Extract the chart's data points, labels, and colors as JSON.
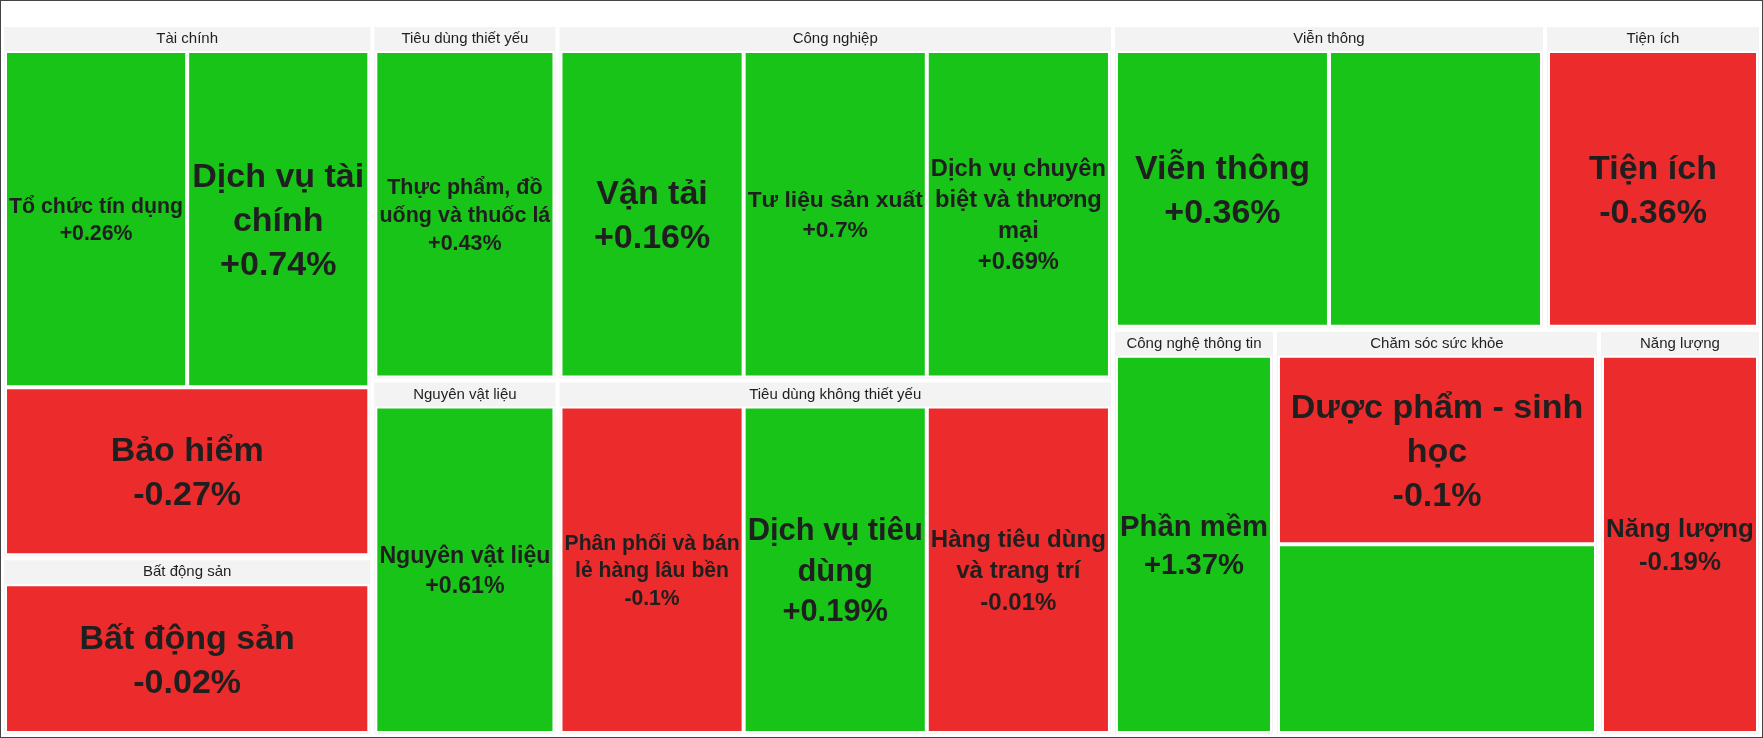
{
  "chart_data": {
    "type": "other",
    "categories": [
      "Tổ chức tín dụng",
      "Dịch vụ tài chính",
      "Bảo hiểm",
      "Bất động sản",
      "Thực phẩm, đồ uống và thuốc lá",
      "Nguyên vật liệu",
      "Vận tải",
      "Tư liệu sản xuất",
      "Dịch vụ chuyên biệt và thương mại",
      "Phân phối và bán lẻ hàng lâu bền",
      "Dịch vụ tiêu dùng",
      "Hàng tiêu dùng và trang trí",
      "Viễn thông",
      null,
      "Tiện ích",
      "Phần mềm",
      "Dược phẩm - sinh học",
      null,
      "Năng lượng"
    ],
    "series": [
      {
        "name": "Tài chính",
        "values": [
          0.26,
          0.74,
          -0.27,
          null,
          null,
          null,
          null,
          null,
          null,
          null,
          null,
          null,
          null,
          null,
          null,
          null,
          null,
          null,
          null
        ],
        "value_labels": [
          "+0.26%",
          "+0.74%",
          "-0.27%",
          null,
          null,
          null,
          null,
          null,
          null,
          null,
          null,
          null,
          null,
          null,
          null,
          null,
          null,
          null,
          null
        ],
        "colors": [
          "#19c419",
          "#19c419",
          "#ec2c2c",
          null,
          null,
          null,
          null,
          null,
          null,
          null,
          null,
          null,
          null,
          null,
          null,
          null,
          null,
          null,
          null
        ]
      },
      {
        "name": "Bất động sản",
        "values": [
          null,
          null,
          null,
          -0.02,
          null,
          null,
          null,
          null,
          null,
          null,
          null,
          null,
          null,
          null,
          null,
          null,
          null,
          null,
          null
        ],
        "value_labels": [
          null,
          null,
          null,
          "-0.02%",
          null,
          null,
          null,
          null,
          null,
          null,
          null,
          null,
          null,
          null,
          null,
          null,
          null,
          null,
          null
        ],
        "colors": [
          null,
          null,
          null,
          "#ec2c2c",
          null,
          null,
          null,
          null,
          null,
          null,
          null,
          null,
          null,
          null,
          null,
          null,
          null,
          null,
          null
        ]
      },
      {
        "name": "Tiêu dùng thiết yếu",
        "values": [
          null,
          null,
          null,
          null,
          0.43,
          null,
          null,
          null,
          null,
          null,
          null,
          null,
          null,
          null,
          null,
          null,
          null,
          null,
          null
        ],
        "value_labels": [
          null,
          null,
          null,
          null,
          "+0.43%",
          null,
          null,
          null,
          null,
          null,
          null,
          null,
          null,
          null,
          null,
          null,
          null,
          null,
          null
        ],
        "colors": [
          null,
          null,
          null,
          null,
          "#19c419",
          null,
          null,
          null,
          null,
          null,
          null,
          null,
          null,
          null,
          null,
          null,
          null,
          null,
          null
        ]
      },
      {
        "name": "Nguyên vật liệu",
        "values": [
          null,
          null,
          null,
          null,
          null,
          0.61,
          null,
          null,
          null,
          null,
          null,
          null,
          null,
          null,
          null,
          null,
          null,
          null,
          null
        ],
        "value_labels": [
          null,
          null,
          null,
          null,
          null,
          "+0.61%",
          null,
          null,
          null,
          null,
          null,
          null,
          null,
          null,
          null,
          null,
          null,
          null,
          null
        ],
        "colors": [
          null,
          null,
          null,
          null,
          null,
          "#19c419",
          null,
          null,
          null,
          null,
          null,
          null,
          null,
          null,
          null,
          null,
          null,
          null,
          null
        ]
      },
      {
        "name": "Công nghiệp",
        "values": [
          null,
          null,
          null,
          null,
          null,
          null,
          0.16,
          0.7,
          0.69,
          null,
          null,
          null,
          null,
          null,
          null,
          null,
          null,
          null,
          null
        ],
        "value_labels": [
          null,
          null,
          null,
          null,
          null,
          null,
          "+0.16%",
          "+0.7%",
          "+0.69%",
          null,
          null,
          null,
          null,
          null,
          null,
          null,
          null,
          null,
          null
        ],
        "colors": [
          null,
          null,
          null,
          null,
          null,
          null,
          "#19c419",
          "#19c419",
          "#19c419",
          null,
          null,
          null,
          null,
          null,
          null,
          null,
          null,
          null,
          null
        ]
      },
      {
        "name": "Tiêu dùng không thiết yếu",
        "values": [
          null,
          null,
          null,
          null,
          null,
          null,
          null,
          null,
          null,
          -0.1,
          0.19,
          -0.01,
          null,
          null,
          null,
          null,
          null,
          null,
          null
        ],
        "value_labels": [
          null,
          null,
          null,
          null,
          null,
          null,
          null,
          null,
          null,
          "-0.1%",
          "+0.19%",
          "-0.01%",
          null,
          null,
          null,
          null,
          null,
          null,
          null
        ],
        "colors": [
          null,
          null,
          null,
          null,
          null,
          null,
          null,
          null,
          null,
          "#ec2c2c",
          "#19c419",
          "#ec2c2c",
          null,
          null,
          null,
          null,
          null,
          null,
          null
        ]
      },
      {
        "name": "Viễn thông",
        "values": [
          null,
          null,
          null,
          null,
          null,
          null,
          null,
          null,
          null,
          null,
          null,
          null,
          0.36,
          null,
          null,
          null,
          null,
          null,
          null
        ],
        "value_labels": [
          null,
          null,
          null,
          null,
          null,
          null,
          null,
          null,
          null,
          null,
          null,
          null,
          "+0.36%",
          null,
          null,
          null,
          null,
          null,
          null
        ],
        "colors": [
          null,
          null,
          null,
          null,
          null,
          null,
          null,
          null,
          null,
          null,
          null,
          null,
          "#19c419",
          "#19c419",
          null,
          null,
          null,
          null,
          null
        ]
      },
      {
        "name": "Tiện ích",
        "values": [
          null,
          null,
          null,
          null,
          null,
          null,
          null,
          null,
          null,
          null,
          null,
          null,
          null,
          null,
          -0.36,
          null,
          null,
          null,
          null
        ],
        "value_labels": [
          null,
          null,
          null,
          null,
          null,
          null,
          null,
          null,
          null,
          null,
          null,
          null,
          null,
          null,
          "-0.36%",
          null,
          null,
          null,
          null
        ],
        "colors": [
          null,
          null,
          null,
          null,
          null,
          null,
          null,
          null,
          null,
          null,
          null,
          null,
          null,
          null,
          "#ec2c2c",
          null,
          null,
          null,
          null
        ]
      },
      {
        "name": "Công nghệ thông tin",
        "values": [
          null,
          null,
          null,
          null,
          null,
          null,
          null,
          null,
          null,
          null,
          null,
          null,
          null,
          null,
          null,
          1.37,
          null,
          null,
          null
        ],
        "value_labels": [
          null,
          null,
          null,
          null,
          null,
          null,
          null,
          null,
          null,
          null,
          null,
          null,
          null,
          null,
          null,
          "+1.37%",
          null,
          null,
          null
        ],
        "colors": [
          null,
          null,
          null,
          null,
          null,
          null,
          null,
          null,
          null,
          null,
          null,
          null,
          null,
          null,
          null,
          "#19c419",
          null,
          null,
          null
        ]
      },
      {
        "name": "Chăm sóc sức khỏe",
        "values": [
          null,
          null,
          null,
          null,
          null,
          null,
          null,
          null,
          null,
          null,
          null,
          null,
          null,
          null,
          null,
          null,
          -0.1,
          null,
          null
        ],
        "value_labels": [
          null,
          null,
          null,
          null,
          null,
          null,
          null,
          null,
          null,
          null,
          null,
          null,
          null,
          null,
          null,
          null,
          "-0.1%",
          null,
          null
        ],
        "colors": [
          null,
          null,
          null,
          null,
          null,
          null,
          null,
          null,
          null,
          null,
          null,
          null,
          null,
          null,
          null,
          null,
          "#ec2c2c",
          "#19c419",
          null
        ]
      },
      {
        "name": "Năng lượng",
        "values": [
          null,
          null,
          null,
          null,
          null,
          null,
          null,
          null,
          null,
          null,
          null,
          null,
          null,
          null,
          null,
          null,
          null,
          null,
          -0.19
        ],
        "value_labels": [
          null,
          null,
          null,
          null,
          null,
          null,
          null,
          null,
          null,
          null,
          null,
          null,
          null,
          null,
          null,
          null,
          null,
          null,
          "-0.19%"
        ],
        "colors": [
          null,
          null,
          null,
          null,
          null,
          null,
          null,
          null,
          null,
          null,
          null,
          null,
          null,
          null,
          null,
          null,
          null,
          null,
          "#ec2c2c"
        ]
      }
    ]
  }
}
